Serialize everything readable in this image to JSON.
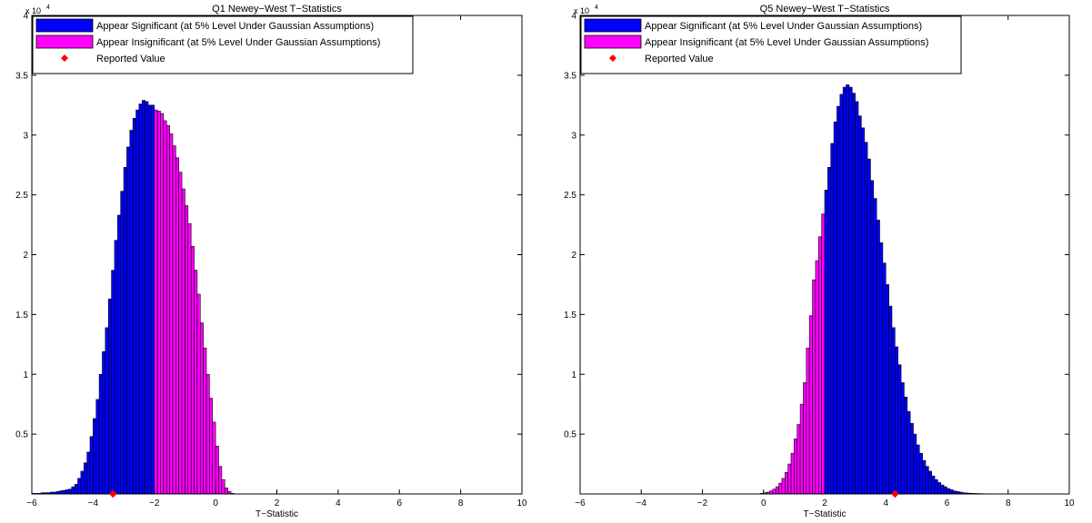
{
  "chart_data": [
    {
      "type": "bar",
      "title": "Q1 Newey−West T−Statistics",
      "xlabel": "T−Statistic",
      "ylabel": "",
      "y_multiplier_label": "x 10",
      "y_multiplier_exponent": "4",
      "xlim": [
        -6,
        10
      ],
      "ylim": [
        0,
        40000
      ],
      "x_ticks": [
        -6,
        -4,
        -2,
        0,
        2,
        4,
        6,
        8,
        10
      ],
      "x_tick_labels": [
        "−6",
        "−4",
        "−2",
        "0",
        "2",
        "4",
        "6",
        "8",
        "10"
      ],
      "y_ticks": [
        5000,
        10000,
        15000,
        20000,
        25000,
        30000,
        35000,
        40000
      ],
      "y_tick_labels": [
        "0.5",
        "1",
        "1.5",
        "2",
        "2.5",
        "3",
        "3.5",
        "4"
      ],
      "grid": false,
      "legend_position": "top-left",
      "legend": [
        {
          "label": "Appear Significant (at 5% Level Under Gaussian Assumptions)",
          "color": "#0000ff",
          "marker": "patch"
        },
        {
          "label": "Appear Insignificant (at 5% Level Under Gaussian Assumptions)",
          "color": "#ff00ff",
          "marker": "patch"
        },
        {
          "label": "Reported Value",
          "color": "#ff0000",
          "marker": "diamond"
        }
      ],
      "significance_threshold": -1.96,
      "bin_width": 0.1,
      "bin_centers_start": -5.95,
      "counts": [
        50,
        50,
        50,
        100,
        100,
        100,
        150,
        150,
        200,
        250,
        300,
        350,
        400,
        600,
        800,
        1300,
        1900,
        2600,
        3500,
        4800,
        6300,
        7900,
        10000,
        11900,
        13900,
        16300,
        18700,
        21200,
        23300,
        25300,
        27300,
        29000,
        30400,
        31400,
        32100,
        32600,
        32900,
        32800,
        32500,
        32500,
        32100,
        32000,
        31800,
        31200,
        30800,
        30100,
        29100,
        28100,
        26900,
        25500,
        24100,
        22600,
        20700,
        18700,
        16700,
        14300,
        12200,
        10000,
        8000,
        6000,
        4000,
        2300,
        1200,
        500,
        200,
        50
      ],
      "reported_value": -3.35,
      "colors": {
        "significant": "#0000ff",
        "insignificant": "#ff00ff",
        "reported": "#ff0000"
      }
    },
    {
      "type": "bar",
      "title": "Q5 Newey−West T−Statistics",
      "xlabel": "T−Statistic",
      "ylabel": "",
      "y_multiplier_label": "x 10",
      "y_multiplier_exponent": "4",
      "xlim": [
        -6,
        10
      ],
      "ylim": [
        0,
        40000
      ],
      "x_ticks": [
        -6,
        -4,
        -2,
        0,
        2,
        4,
        6,
        8,
        10
      ],
      "x_tick_labels": [
        "−6",
        "−4",
        "−2",
        "0",
        "2",
        "4",
        "6",
        "8",
        "10"
      ],
      "y_ticks": [
        5000,
        10000,
        15000,
        20000,
        25000,
        30000,
        35000,
        40000
      ],
      "y_tick_labels": [
        "0.5",
        "1",
        "1.5",
        "2",
        "2.5",
        "3",
        "3.5",
        "4"
      ],
      "grid": false,
      "legend_position": "top-left",
      "legend": [
        {
          "label": "Appear Significant (at 5% Level Under Gaussian Assumptions)",
          "color": "#0000ff",
          "marker": "patch"
        },
        {
          "label": "Appear Insignificant (at 5% Level Under Gaussian Assumptions)",
          "color": "#ff00ff",
          "marker": "patch"
        },
        {
          "label": "Reported Value",
          "color": "#ff0000",
          "marker": "diamond"
        }
      ],
      "significance_threshold": 1.96,
      "bin_width": 0.1,
      "bin_centers_start": -0.05,
      "counts": [
        50,
        100,
        150,
        250,
        400,
        600,
        900,
        1300,
        1800,
        2500,
        3400,
        4600,
        5800,
        7500,
        9300,
        12200,
        14900,
        17900,
        19500,
        21500,
        23400,
        25400,
        27300,
        29300,
        31100,
        32400,
        33400,
        34000,
        34200,
        34000,
        33500,
        32800,
        31600,
        30600,
        29400,
        28000,
        26200,
        24700,
        22900,
        21000,
        19300,
        17500,
        15700,
        13900,
        12300,
        10800,
        9300,
        8100,
        6900,
        5900,
        5000,
        4100,
        3400,
        2800,
        2300,
        1900,
        1500,
        1200,
        950,
        750,
        600,
        450,
        350,
        250,
        200,
        150,
        100,
        80,
        60,
        50,
        40,
        30,
        25,
        20,
        15,
        15,
        10,
        10,
        10,
        10,
        10,
        10,
        10,
        10,
        10,
        10,
        10,
        10,
        10,
        10,
        10,
        10,
        10,
        10,
        10
      ],
      "reported_value": 4.3,
      "colors": {
        "significant": "#0000ff",
        "insignificant": "#ff00ff",
        "reported": "#ff0000"
      }
    }
  ]
}
